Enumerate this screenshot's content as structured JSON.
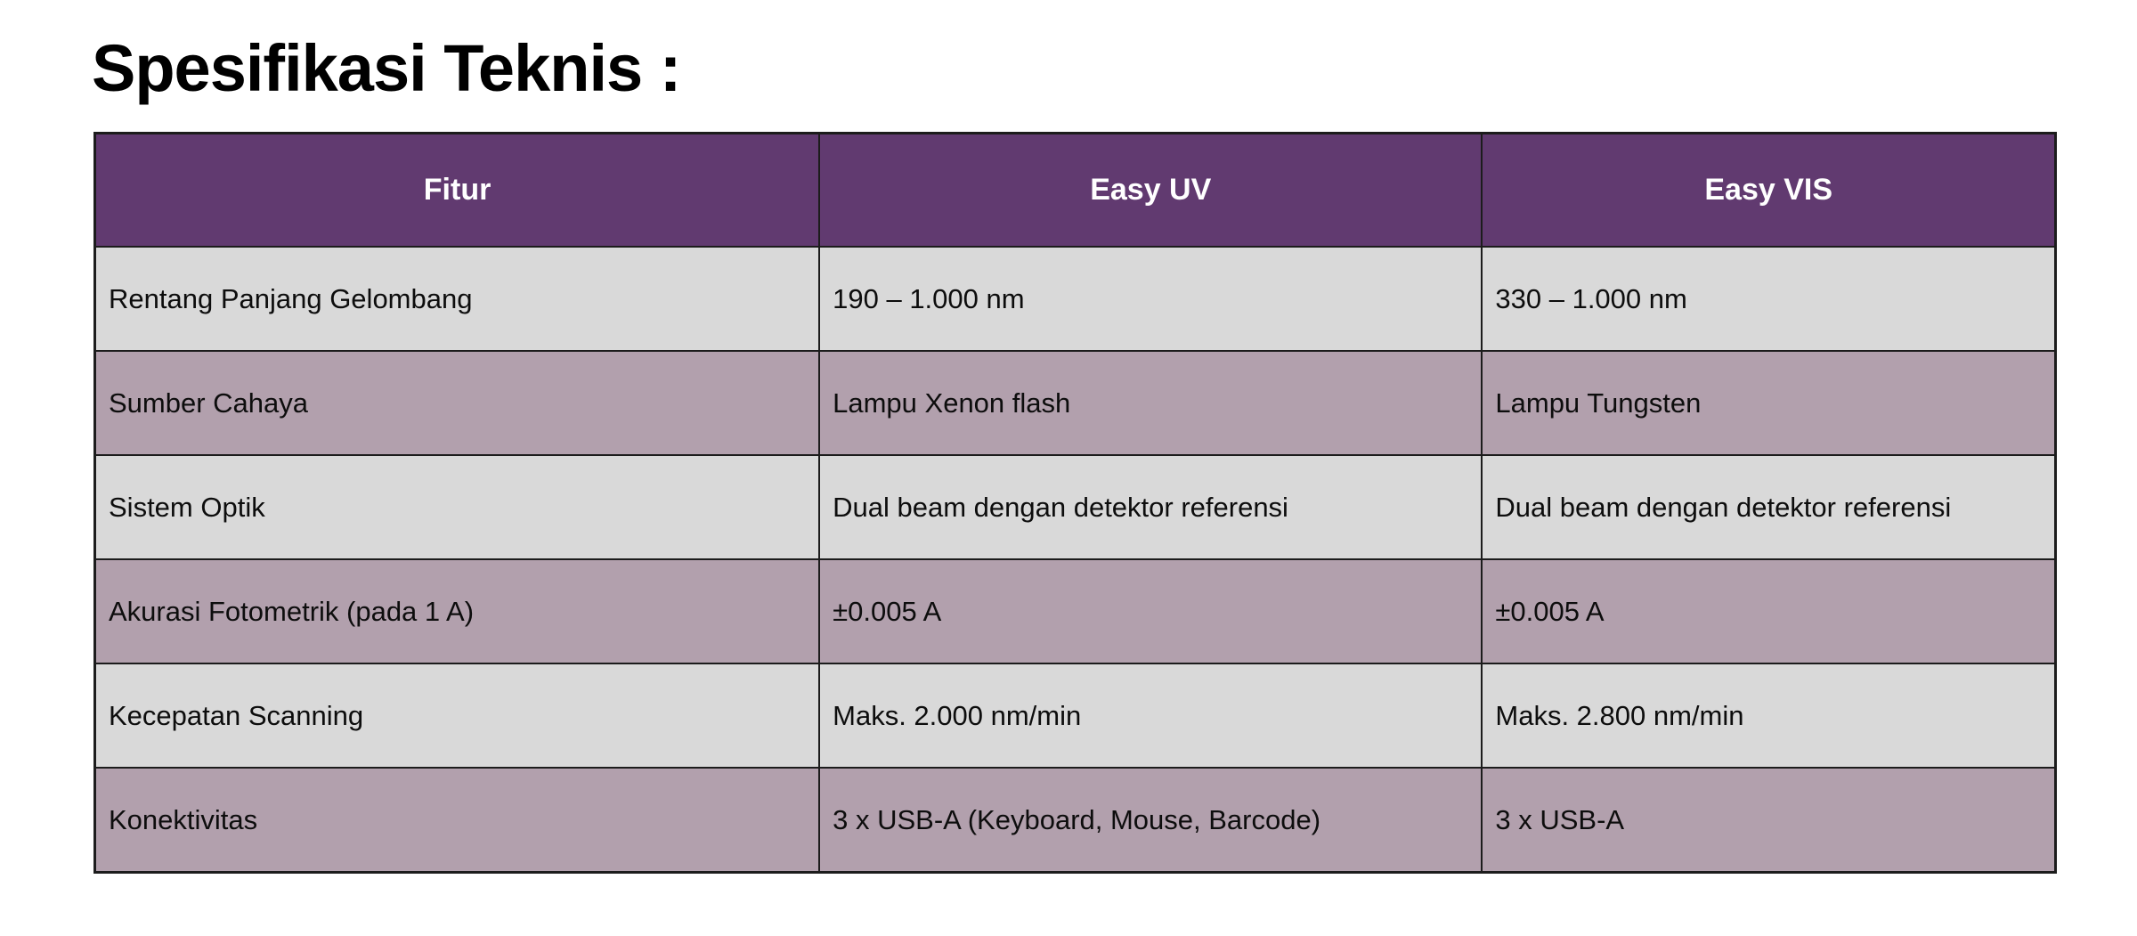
{
  "title": "Spesifikasi Teknis :",
  "colors": {
    "header_bg": "#613a70",
    "row_bg": "#d9d9d9",
    "row_alt_bg": "#b2a0ad",
    "header_text": "#ffffff",
    "cell_text": "#0d0d0d",
    "border": "#1c1c1c",
    "page_bg": "#ffffff"
  },
  "table": {
    "columns": [
      {
        "label": "Fitur"
      },
      {
        "label": "Easy UV"
      },
      {
        "label": "Easy VIS"
      }
    ],
    "rows": [
      {
        "feature": "Rentang Panjang Gelombang",
        "easy_uv": "190 – 1.000 nm",
        "easy_vis": "330 – 1.000 nm"
      },
      {
        "feature": "Sumber Cahaya",
        "easy_uv": "Lampu Xenon flash",
        "easy_vis": "Lampu Tungsten"
      },
      {
        "feature": "Sistem Optik",
        "easy_uv": "Dual beam dengan detektor referensi",
        "easy_vis": "Dual beam dengan detektor referensi"
      },
      {
        "feature": "Akurasi Fotometrik (pada 1 A)",
        "easy_uv": "±0.005 A",
        "easy_vis": "±0.005 A"
      },
      {
        "feature": "Kecepatan Scanning",
        "easy_uv": "Maks. 2.000 nm/min",
        "easy_vis": "Maks. 2.800 nm/min"
      },
      {
        "feature": "Konektivitas",
        "easy_uv": "3 x USB-A (Keyboard, Mouse, Barcode)",
        "easy_vis": "3 x USB-A"
      }
    ]
  }
}
